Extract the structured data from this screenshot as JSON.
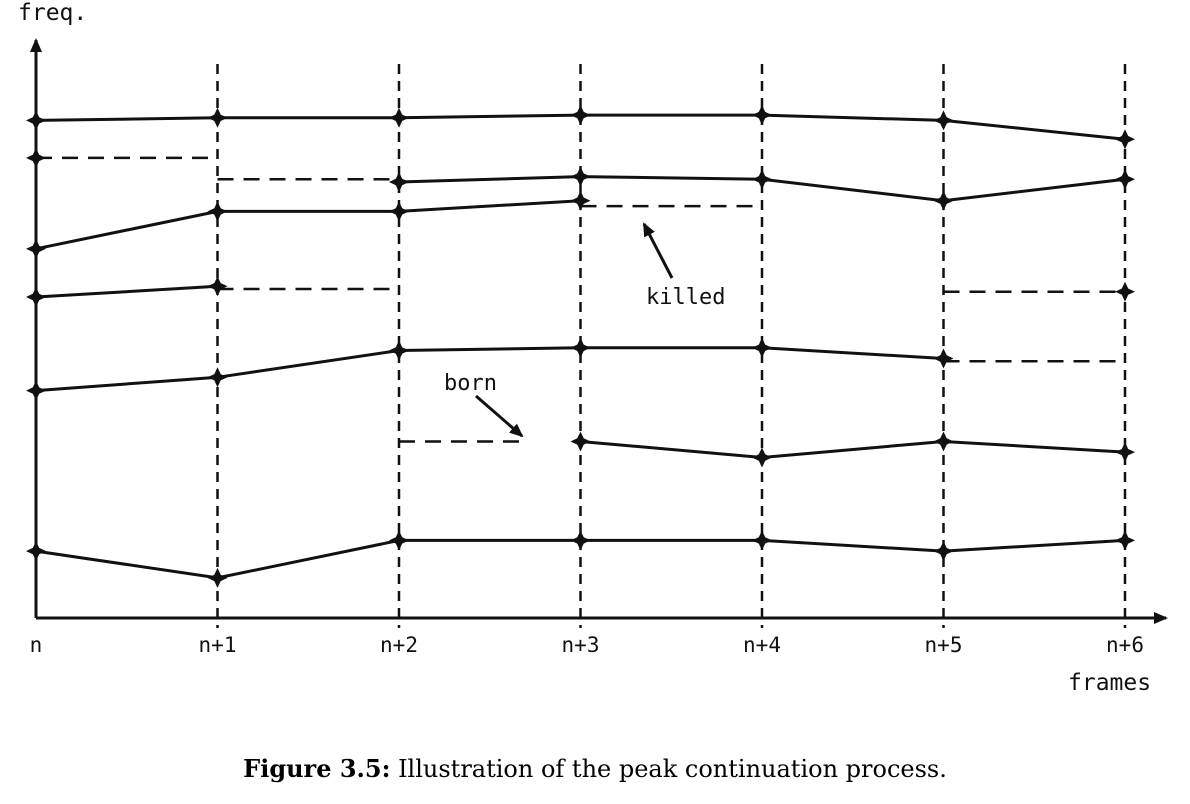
{
  "chart_data": {
    "type": "line",
    "ylabel": "freq.",
    "xlabel": "frames",
    "x": [
      "n",
      "n+1",
      "n+2",
      "n+3",
      "n+4",
      "n+5",
      "n+6"
    ],
    "annotations": [
      {
        "text": "killed"
      },
      {
        "text": "born"
      }
    ],
    "tracks": [
      {
        "style": "solid",
        "points": [
          [
            0,
            9.3
          ],
          [
            1,
            9.35
          ],
          [
            2,
            9.35
          ],
          [
            3,
            9.4
          ],
          [
            4,
            9.4
          ],
          [
            5,
            9.3
          ],
          [
            6,
            8.95
          ]
        ]
      },
      {
        "style": "dashed",
        "points": [
          [
            0,
            8.6
          ],
          [
            1,
            8.6
          ]
        ]
      },
      {
        "style": "dashed",
        "points": [
          [
            1,
            8.2
          ],
          [
            2,
            8.2
          ]
        ]
      },
      {
        "style": "solid",
        "points": [
          [
            2,
            8.15
          ],
          [
            3,
            8.25
          ],
          [
            4,
            8.2
          ],
          [
            5,
            7.8
          ],
          [
            6,
            8.2
          ]
        ]
      },
      {
        "style": "solid",
        "points": [
          [
            0,
            6.9
          ],
          [
            1,
            7.6
          ],
          [
            2,
            7.6
          ],
          [
            3,
            7.8
          ]
        ]
      },
      {
        "style": "dashed",
        "points": [
          [
            3,
            7.7
          ],
          [
            4,
            7.7
          ]
        ]
      },
      {
        "style": "solid",
        "points": [
          [
            0,
            6.0
          ],
          [
            1,
            6.2
          ]
        ]
      },
      {
        "style": "dashed",
        "points": [
          [
            1,
            6.15
          ],
          [
            2,
            6.15
          ]
        ]
      },
      {
        "style": "dashed",
        "points": [
          [
            5,
            6.1
          ],
          [
            6,
            6.1
          ]
        ]
      },
      {
        "style": "solid",
        "points": [
          [
            0,
            4.25
          ],
          [
            1,
            4.5
          ],
          [
            2,
            5.0
          ],
          [
            3,
            5.05
          ],
          [
            4,
            5.05
          ],
          [
            5,
            4.85
          ]
        ]
      },
      {
        "style": "dashed",
        "points": [
          [
            5,
            4.8
          ],
          [
            6,
            4.8
          ]
        ]
      },
      {
        "style": "dashed",
        "points": [
          [
            2,
            3.3
          ],
          [
            2.7,
            3.3
          ]
        ]
      },
      {
        "style": "solid",
        "points": [
          [
            3,
            3.3
          ],
          [
            4,
            3.0
          ],
          [
            5,
            3.3
          ],
          [
            6,
            3.1
          ]
        ]
      },
      {
        "style": "solid",
        "points": [
          [
            0,
            1.25
          ],
          [
            1,
            0.75
          ],
          [
            2,
            1.45
          ],
          [
            3,
            1.45
          ],
          [
            4,
            1.45
          ],
          [
            5,
            1.25
          ],
          [
            6,
            1.45
          ]
        ]
      }
    ]
  },
  "caption": {
    "label": "Figure 3.5:",
    "text": "Illustration of the peak continuation process."
  }
}
